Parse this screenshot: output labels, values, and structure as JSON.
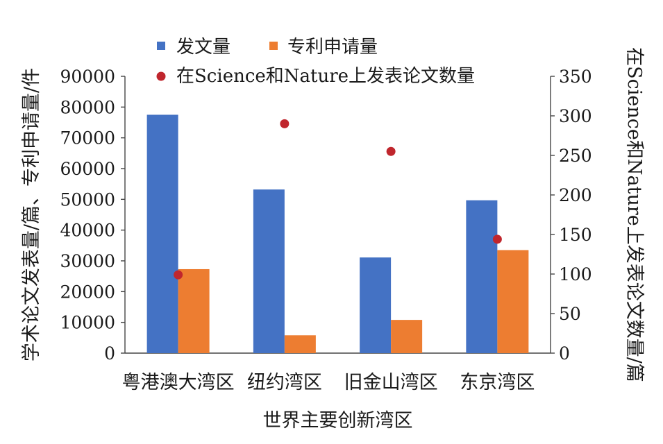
{
  "chart_data": {
    "type": "bar",
    "categories": [
      "粤港澳大湾区",
      "纽约湾区",
      "旧金山湾区",
      "东京湾区"
    ],
    "series": [
      {
        "name": "发文量",
        "kind": "bar",
        "axis": "left",
        "color": "#4472c4",
        "values": [
          77500,
          53200,
          31100,
          49700
        ]
      },
      {
        "name": "专利申请量",
        "kind": "bar",
        "axis": "left",
        "color": "#ed7d31",
        "values": [
          27300,
          5800,
          10800,
          33500
        ]
      },
      {
        "name": "在Science和Nature上发表论文数量",
        "kind": "scatter",
        "axis": "right",
        "color": "#c0262d",
        "values": [
          99,
          290,
          255,
          144
        ]
      }
    ],
    "xlabel": "世界主要创新湾区",
    "ylabel_left": "学术论文发表量/篇、专利申请量/件",
    "ylabel_right": "在Science和Nature上发表论文数量/篇",
    "ylim_left": [
      0,
      90000
    ],
    "ylim_right": [
      0,
      350
    ],
    "yticks_left": [
      0,
      10000,
      20000,
      30000,
      40000,
      50000,
      60000,
      70000,
      80000,
      90000
    ],
    "yticks_right": [
      0,
      50,
      100,
      150,
      200,
      250,
      300,
      350
    ],
    "legend_position": "top",
    "grid": false
  }
}
